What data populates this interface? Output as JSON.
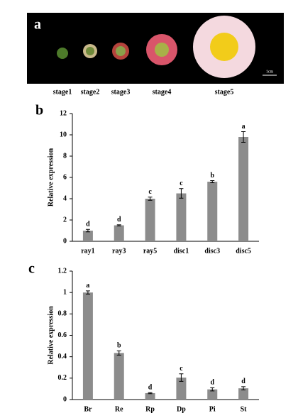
{
  "photo": {
    "panel_label": "a",
    "stages": [
      "stage1",
      "stage2",
      "stage3",
      "stage4",
      "stage5"
    ],
    "scale_bar": "1cm"
  },
  "chart_data": [
    {
      "type": "bar",
      "panel_label": "b",
      "y_label": "Relative expression",
      "categories": [
        "ray1",
        "ray3",
        "ray5",
        "disc1",
        "disc3",
        "disc5"
      ],
      "values": [
        1.0,
        1.5,
        4.0,
        4.5,
        5.6,
        9.8
      ],
      "errors": [
        0.12,
        0.05,
        0.15,
        0.45,
        0.1,
        0.5
      ],
      "annotations": [
        "d",
        "d",
        "c",
        "c",
        "b",
        "a"
      ],
      "color": "#8c8c8c",
      "ylim": [
        0,
        12
      ],
      "yticks": [
        0,
        2,
        4,
        6,
        8,
        10,
        12
      ]
    },
    {
      "type": "bar",
      "panel_label": "c",
      "y_label": "Relative expression",
      "categories": [
        "Br",
        "Re",
        "Rp",
        "Dp",
        "Pi",
        "St"
      ],
      "values": [
        1.0,
        0.435,
        0.06,
        0.205,
        0.095,
        0.105
      ],
      "errors": [
        0.015,
        0.02,
        0.005,
        0.035,
        0.015,
        0.015
      ],
      "annotations": [
        "a",
        "b",
        "d",
        "c",
        "d",
        "d"
      ],
      "color": "#8c8c8c",
      "ylim": [
        0,
        1.2
      ],
      "yticks": [
        0,
        0.2,
        0.4,
        0.6,
        0.8,
        1,
        1.2
      ]
    }
  ]
}
